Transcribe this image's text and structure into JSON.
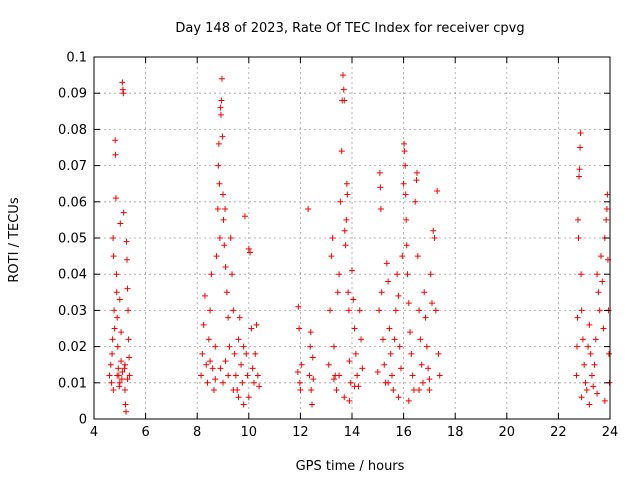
{
  "chart_data": {
    "type": "scatter",
    "title": "Day 148 of 2023, Rate Of TEC Index for receiver cpvg",
    "xlabel": "GPS time / hours",
    "ylabel": "ROTI / TECUs",
    "xlim": [
      4,
      24
    ],
    "ylim": [
      0,
      0.1
    ],
    "x_ticks": [
      4,
      6,
      8,
      10,
      12,
      14,
      16,
      18,
      20,
      22,
      24
    ],
    "y_ticks": [
      0,
      0.01,
      0.02,
      0.03,
      0.04,
      0.05,
      0.06,
      0.07,
      0.08,
      0.09,
      0.1
    ],
    "x_tick_labels": [
      "4",
      "6",
      "8",
      "10",
      "12",
      "14",
      "16",
      "18",
      "20",
      "22",
      "24"
    ],
    "y_tick_labels": [
      "0",
      "0.01",
      "0.02",
      "0.03",
      "0.04",
      "0.05",
      "0.06",
      "0.07",
      "0.08",
      "0.09",
      "0.1"
    ],
    "grid": true,
    "marker": "plus",
    "color": "#ff0000",
    "series": [
      {
        "points": [
          [
            4.6,
            0.012
          ],
          [
            4.65,
            0.015
          ],
          [
            4.68,
            0.01
          ],
          [
            4.7,
            0.018
          ],
          [
            4.72,
            0.022
          ],
          [
            4.74,
            0.05
          ],
          [
            4.76,
            0.045
          ],
          [
            4.78,
            0.03
          ],
          [
            4.8,
            0.025
          ],
          [
            4.82,
            0.077
          ],
          [
            4.83,
            0.073
          ],
          [
            4.85,
            0.061
          ],
          [
            4.87,
            0.04
          ],
          [
            4.88,
            0.035
          ],
          [
            4.9,
            0.028
          ],
          [
            4.92,
            0.02
          ],
          [
            4.94,
            0.014
          ],
          [
            4.96,
            0.012
          ],
          [
            4.98,
            0.009
          ],
          [
            5.0,
            0.033
          ],
          [
            5.02,
            0.054
          ],
          [
            5.05,
            0.016
          ],
          [
            5.08,
            0.011
          ],
          [
            5.1,
            0.093
          ],
          [
            5.12,
            0.091
          ],
          [
            5.14,
            0.09
          ],
          [
            5.15,
            0.057
          ],
          [
            5.18,
            0.014
          ],
          [
            5.2,
            0.008
          ],
          [
            5.22,
            0.004
          ],
          [
            5.24,
            0.002
          ],
          [
            5.26,
            0.049
          ],
          [
            5.28,
            0.044
          ],
          [
            5.3,
            0.036
          ],
          [
            5.32,
            0.03
          ],
          [
            5.34,
            0.022
          ],
          [
            5.36,
            0.017
          ],
          [
            5.38,
            0.012
          ],
          [
            4.9,
            0.012
          ],
          [
            5.0,
            0.01
          ],
          [
            5.1,
            0.013
          ],
          [
            5.2,
            0.015
          ],
          [
            5.3,
            0.011
          ],
          [
            4.75,
            0.008
          ],
          [
            5.05,
            0.024
          ],
          [
            8.15,
            0.012
          ],
          [
            8.2,
            0.018
          ],
          [
            8.25,
            0.026
          ],
          [
            8.3,
            0.034
          ],
          [
            8.35,
            0.015
          ],
          [
            8.4,
            0.01
          ],
          [
            8.45,
            0.022
          ],
          [
            8.5,
            0.03
          ],
          [
            8.55,
            0.04
          ],
          [
            8.6,
            0.014
          ],
          [
            8.65,
            0.008
          ],
          [
            8.7,
            0.02
          ],
          [
            8.75,
            0.045
          ],
          [
            8.8,
            0.058
          ],
          [
            8.82,
            0.07
          ],
          [
            8.84,
            0.076
          ],
          [
            8.86,
            0.065
          ],
          [
            8.88,
            0.05
          ],
          [
            8.9,
            0.086
          ],
          [
            8.92,
            0.084
          ],
          [
            8.94,
            0.088
          ],
          [
            8.96,
            0.094
          ],
          [
            8.98,
            0.078
          ],
          [
            9.0,
            0.062
          ],
          [
            9.02,
            0.055
          ],
          [
            9.05,
            0.048
          ],
          [
            9.08,
            0.058
          ],
          [
            9.1,
            0.042
          ],
          [
            9.15,
            0.035
          ],
          [
            9.2,
            0.028
          ],
          [
            9.25,
            0.02
          ],
          [
            9.3,
            0.05
          ],
          [
            9.35,
            0.04
          ],
          [
            9.4,
            0.03
          ],
          [
            9.45,
            0.018
          ],
          [
            9.5,
            0.012
          ],
          [
            9.55,
            0.008
          ],
          [
            9.6,
            0.022
          ],
          [
            9.65,
            0.028
          ],
          [
            9.7,
            0.015
          ],
          [
            9.75,
            0.01
          ],
          [
            9.8,
            0.02
          ],
          [
            9.85,
            0.056
          ],
          [
            9.9,
            0.018
          ],
          [
            9.95,
            0.012
          ],
          [
            10.0,
            0.047
          ],
          [
            10.05,
            0.046
          ],
          [
            10.1,
            0.025
          ],
          [
            10.15,
            0.014
          ],
          [
            10.2,
            0.01
          ],
          [
            10.25,
            0.018
          ],
          [
            10.3,
            0.026
          ],
          [
            10.35,
            0.012
          ],
          [
            10.4,
            0.009
          ],
          [
            8.9,
            0.014
          ],
          [
            9.0,
            0.01
          ],
          [
            9.1,
            0.016
          ],
          [
            9.2,
            0.012
          ],
          [
            9.4,
            0.008
          ],
          [
            9.6,
            0.006
          ],
          [
            9.8,
            0.004
          ],
          [
            10.0,
            0.006
          ],
          [
            8.5,
            0.016
          ],
          [
            8.7,
            0.011
          ],
          [
            11.9,
            0.013
          ],
          [
            11.92,
            0.031
          ],
          [
            11.95,
            0.025
          ],
          [
            11.98,
            0.01
          ],
          [
            12.0,
            0.008
          ],
          [
            12.05,
            0.015
          ],
          [
            12.3,
            0.058
          ],
          [
            12.35,
            0.012
          ],
          [
            12.38,
            0.02
          ],
          [
            12.4,
            0.024
          ],
          [
            12.42,
            0.008
          ],
          [
            12.45,
            0.004
          ],
          [
            12.48,
            0.017
          ],
          [
            12.5,
            0.011
          ],
          [
            13.1,
            0.015
          ],
          [
            13.15,
            0.03
          ],
          [
            13.2,
            0.045
          ],
          [
            13.25,
            0.05
          ],
          [
            13.3,
            0.02
          ],
          [
            13.35,
            0.012
          ],
          [
            13.4,
            0.008
          ],
          [
            13.45,
            0.035
          ],
          [
            13.5,
            0.04
          ],
          [
            13.55,
            0.06
          ],
          [
            13.6,
            0.074
          ],
          [
            13.62,
            0.088
          ],
          [
            13.65,
            0.095
          ],
          [
            13.68,
            0.091
          ],
          [
            13.7,
            0.088
          ],
          [
            13.72,
            0.052
          ],
          [
            13.75,
            0.048
          ],
          [
            13.78,
            0.055
          ],
          [
            13.8,
            0.065
          ],
          [
            13.82,
            0.062
          ],
          [
            13.85,
            0.035
          ],
          [
            13.88,
            0.03
          ],
          [
            13.9,
            0.016
          ],
          [
            13.95,
            0.01
          ],
          [
            14.0,
            0.041
          ],
          [
            14.05,
            0.033
          ],
          [
            14.1,
            0.025
          ],
          [
            14.15,
            0.018
          ],
          [
            14.2,
            0.012
          ],
          [
            14.25,
            0.009
          ],
          [
            14.3,
            0.03
          ],
          [
            14.35,
            0.022
          ],
          [
            14.4,
            0.014
          ],
          [
            13.5,
            0.012
          ],
          [
            13.7,
            0.006
          ],
          [
            13.9,
            0.005
          ],
          [
            14.1,
            0.009
          ],
          [
            13.3,
            0.011
          ],
          [
            15.0,
            0.013
          ],
          [
            15.05,
            0.03
          ],
          [
            15.08,
            0.068
          ],
          [
            15.1,
            0.064
          ],
          [
            15.12,
            0.058
          ],
          [
            15.15,
            0.035
          ],
          [
            15.2,
            0.022
          ],
          [
            15.25,
            0.015
          ],
          [
            15.3,
            0.01
          ],
          [
            15.35,
            0.043
          ],
          [
            15.4,
            0.038
          ],
          [
            15.45,
            0.025
          ],
          [
            15.5,
            0.018
          ],
          [
            15.55,
            0.012
          ],
          [
            15.6,
            0.008
          ],
          [
            15.65,
            0.022
          ],
          [
            15.7,
            0.03
          ],
          [
            15.75,
            0.04
          ],
          [
            15.8,
            0.034
          ],
          [
            15.85,
            0.02
          ],
          [
            15.9,
            0.014
          ],
          [
            15.95,
            0.045
          ],
          [
            16.0,
            0.065
          ],
          [
            16.02,
            0.076
          ],
          [
            16.04,
            0.074
          ],
          [
            16.06,
            0.07
          ],
          [
            16.08,
            0.062
          ],
          [
            16.1,
            0.055
          ],
          [
            16.12,
            0.048
          ],
          [
            16.15,
            0.04
          ],
          [
            16.2,
            0.032
          ],
          [
            16.25,
            0.024
          ],
          [
            16.3,
            0.018
          ],
          [
            16.35,
            0.012
          ],
          [
            16.4,
            0.008
          ],
          [
            16.45,
            0.06
          ],
          [
            16.5,
            0.066
          ],
          [
            16.52,
            0.068
          ],
          [
            16.55,
            0.045
          ],
          [
            16.6,
            0.03
          ],
          [
            16.65,
            0.022
          ],
          [
            16.7,
            0.015
          ],
          [
            16.75,
            0.01
          ],
          [
            16.8,
            0.035
          ],
          [
            16.85,
            0.028
          ],
          [
            16.9,
            0.02
          ],
          [
            16.95,
            0.014
          ],
          [
            17.0,
            0.008
          ],
          [
            17.05,
            0.04
          ],
          [
            17.1,
            0.032
          ],
          [
            17.15,
            0.052
          ],
          [
            17.2,
            0.05
          ],
          [
            17.25,
            0.03
          ],
          [
            17.3,
            0.063
          ],
          [
            17.35,
            0.018
          ],
          [
            17.4,
            0.012
          ],
          [
            15.4,
            0.01
          ],
          [
            15.8,
            0.006
          ],
          [
            16.2,
            0.005
          ],
          [
            16.6,
            0.008
          ],
          [
            17.0,
            0.011
          ],
          [
            22.7,
            0.012
          ],
          [
            22.72,
            0.02
          ],
          [
            22.74,
            0.028
          ],
          [
            22.76,
            0.055
          ],
          [
            22.78,
            0.05
          ],
          [
            22.8,
            0.067
          ],
          [
            22.82,
            0.069
          ],
          [
            22.84,
            0.075
          ],
          [
            22.86,
            0.079
          ],
          [
            22.88,
            0.04
          ],
          [
            22.9,
            0.03
          ],
          [
            22.95,
            0.022
          ],
          [
            23.0,
            0.015
          ],
          [
            23.05,
            0.01
          ],
          [
            23.1,
            0.008
          ],
          [
            23.15,
            0.02
          ],
          [
            23.2,
            0.026
          ],
          [
            23.25,
            0.018
          ],
          [
            23.3,
            0.012
          ],
          [
            23.35,
            0.009
          ],
          [
            23.4,
            0.015
          ],
          [
            23.45,
            0.022
          ],
          [
            23.5,
            0.04
          ],
          [
            23.55,
            0.035
          ],
          [
            23.6,
            0.03
          ],
          [
            23.65,
            0.045
          ],
          [
            23.7,
            0.038
          ],
          [
            23.75,
            0.025
          ],
          [
            23.8,
            0.05
          ],
          [
            23.85,
            0.055
          ],
          [
            23.88,
            0.058
          ],
          [
            23.9,
            0.062
          ],
          [
            23.92,
            0.044
          ],
          [
            23.94,
            0.03
          ],
          [
            23.96,
            0.018
          ],
          [
            23.98,
            0.01
          ],
          [
            22.9,
            0.006
          ],
          [
            23.2,
            0.004
          ],
          [
            23.5,
            0.007
          ],
          [
            23.8,
            0.005
          ]
        ]
      }
    ]
  }
}
